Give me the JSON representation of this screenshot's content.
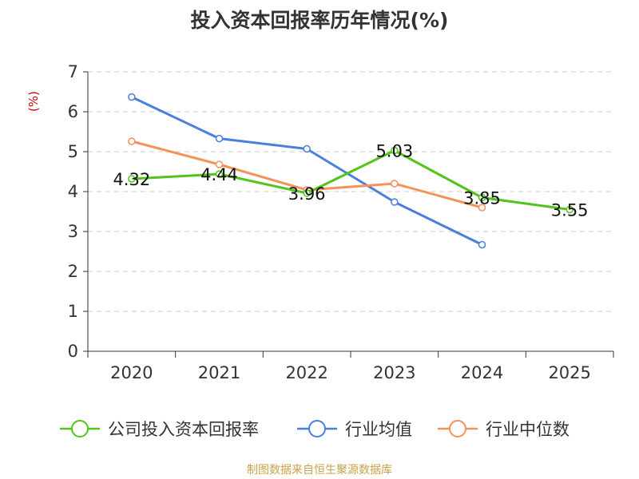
{
  "chart_data": {
    "type": "line",
    "title": "投入资本回报率历年情况(%)",
    "ylabel": "(%)",
    "xlabel": "",
    "categories": [
      "2020",
      "2021",
      "2022",
      "2023",
      "2024",
      "2025"
    ],
    "ylim": [
      0,
      7
    ],
    "yticks": [
      0,
      1,
      2,
      3,
      4,
      5,
      6,
      7
    ],
    "grid": true,
    "legend_position": "bottom",
    "series": [
      {
        "name": "公司投入资本回报率",
        "color": "#52c41a",
        "values": [
          4.32,
          4.44,
          3.96,
          5.03,
          3.85,
          3.55
        ],
        "labels": [
          "4.32",
          "4.44",
          "3.96",
          "5.03",
          "3.85",
          "3.55"
        ]
      },
      {
        "name": "行业均值",
        "color": "#4a7fdc",
        "values": [
          6.37,
          5.33,
          5.07,
          3.74,
          2.67,
          null
        ]
      },
      {
        "name": "行业中位数",
        "color": "#f5915a",
        "values": [
          5.26,
          4.68,
          4.04,
          4.2,
          3.6,
          null
        ]
      }
    ]
  },
  "source": "制图数据来自恒生聚源数据库"
}
